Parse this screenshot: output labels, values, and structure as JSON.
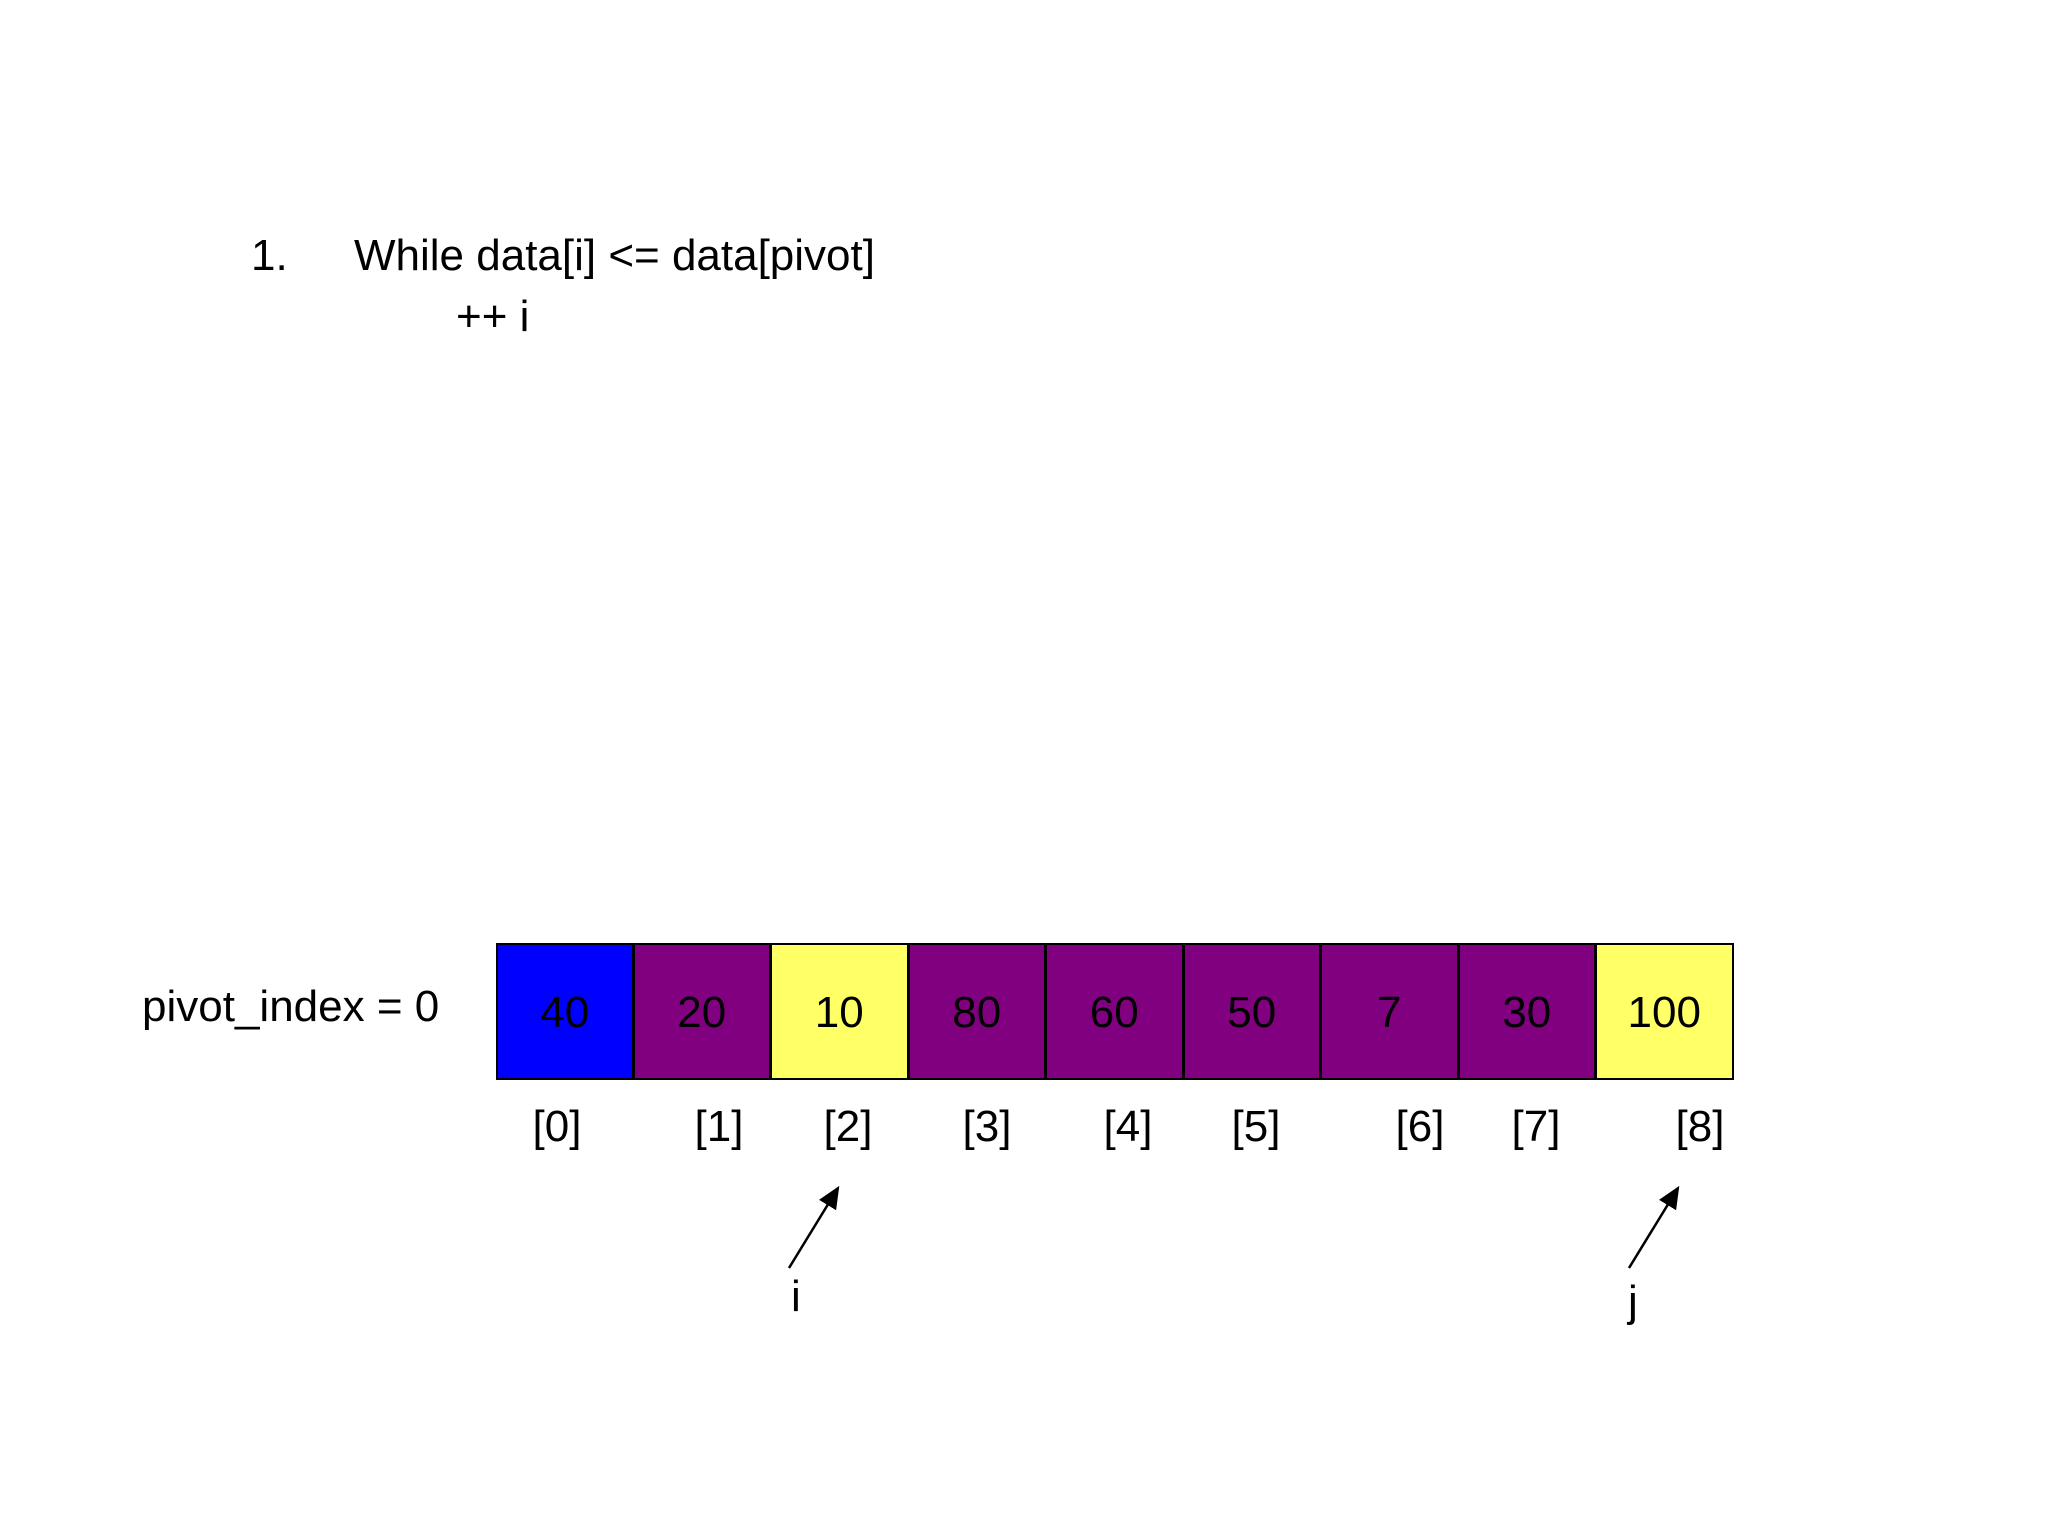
{
  "step": {
    "number": "1.",
    "line1": "While data[i] <= data[pivot]",
    "line2": "++ i"
  },
  "pivot_label": "pivot_index = 0",
  "array": {
    "values": [
      "40",
      "20",
      "10",
      "80",
      "60",
      "50",
      "7",
      "30",
      "100"
    ],
    "indices": [
      "[0]",
      "[1]",
      "[2]",
      "[3]",
      "[4]",
      "[5]",
      "[6]",
      "[7]",
      "[8]"
    ],
    "cell_colors": [
      "#0000FF",
      "#800080",
      "#FFFF66",
      "#800080",
      "#800080",
      "#800080",
      "#800080",
      "#800080",
      "#FFFF66"
    ]
  },
  "pointers": {
    "i": {
      "label": "i",
      "index": 2
    },
    "j": {
      "label": "j",
      "index": 8
    }
  }
}
